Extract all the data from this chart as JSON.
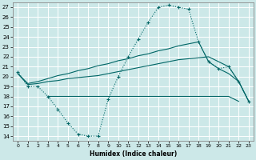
{
  "xlabel": "Humidex (Indice chaleur)",
  "xlim": [
    -0.5,
    23.5
  ],
  "ylim": [
    13.5,
    27.5
  ],
  "yticks": [
    14,
    15,
    16,
    17,
    18,
    19,
    20,
    21,
    22,
    23,
    24,
    25,
    26,
    27
  ],
  "xticks": [
    0,
    1,
    2,
    3,
    4,
    5,
    6,
    7,
    8,
    9,
    10,
    11,
    12,
    13,
    14,
    15,
    16,
    17,
    18,
    19,
    20,
    21,
    22,
    23
  ],
  "bg_color": "#cce8e8",
  "grid_color": "#b8d8d8",
  "line_color": "#006666",
  "series1_y": [
    20.5,
    19.0,
    19.0,
    18.0,
    16.7,
    15.3,
    14.2,
    14.0,
    14.0,
    17.7,
    20.0,
    22.0,
    23.8,
    25.5,
    27.0,
    27.2,
    27.0,
    26.8,
    23.5,
    21.5,
    20.8,
    21.0,
    19.5,
    17.5
  ],
  "series2_y": [
    20.3,
    19.2,
    19.3,
    19.5,
    19.6,
    19.8,
    19.9,
    20.0,
    20.1,
    20.3,
    20.5,
    20.7,
    20.9,
    21.1,
    21.3,
    21.5,
    21.7,
    21.8,
    21.9,
    22.0,
    21.5,
    21.0,
    19.5,
    17.5
  ],
  "series3_y": [
    20.3,
    19.3,
    19.5,
    19.8,
    20.1,
    20.3,
    20.6,
    20.8,
    21.1,
    21.3,
    21.6,
    21.8,
    22.1,
    22.3,
    22.6,
    22.8,
    23.1,
    23.3,
    23.5,
    21.5,
    20.8,
    20.3,
    19.5,
    17.5
  ],
  "series4_y": [
    18.0,
    18.0,
    18.0,
    18.0,
    18.0,
    18.0,
    18.0,
    18.0,
    18.0,
    18.0,
    18.0,
    18.0,
    18.0,
    18.0,
    18.0,
    18.0,
    18.0,
    18.0,
    18.0,
    17.5
  ]
}
